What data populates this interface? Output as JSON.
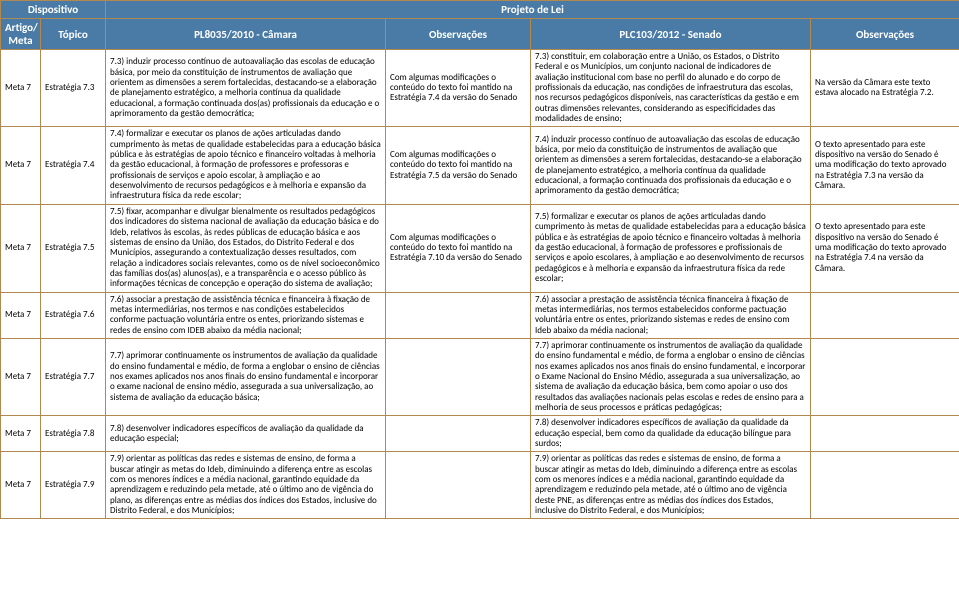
{
  "headers": {
    "group_dispositivo": "Dispositivo",
    "group_projeto": "Projeto de Lei",
    "artigo": "Artigo/ Meta",
    "topico": "Tópico",
    "pl1": "PL8035/2010 - Câmara",
    "obs1": "Observações",
    "pl2": "PLC103/2012 - Senado",
    "obs2": "Observações"
  },
  "rows": [
    {
      "artigo": "Meta 7",
      "topico": "Estratégia 7.3",
      "pl1": "7.3) induzir processo contínuo de autoavaliação das escolas de educação básica, por meio da constituição de instrumentos de avaliação que orientem as dimensões a serem fortalecidas, destacando-se a elaboração de planejamento estratégico, a melhoria contínua da qualidade educacional, a formação continuada dos(as) profissionais da educação e o aprimoramento da gestão democrática;",
      "obs1": "Com algumas modificações o conteúdo do texto foi mantido na Estratégia 7.4 da versão do Senado",
      "pl2": "7.3) constituir, em colaboração entre a União, os Estados, o Distrito Federal e os Municípios, um conjunto nacional de indicadores de avaliação institucional com base no perfil do alunado e do corpo de profissionais da educação, nas condições de infraestrutura das escolas, nos recursos pedagógicos disponíveis, nas características da gestão e em outras dimensões relevantes, considerando as especificidades das modalidades de ensino;",
      "obs2": "Na versão da Câmara este texto estava alocado na Estratégia 7.2."
    },
    {
      "artigo": "Meta 7",
      "topico": "Estratégia 7.4",
      "pl1": "7.4) formalizar e executar os planos de ações articuladas dando cumprimento às metas de qualidade estabelecidas para a educação básica pública e às estratégias de apoio técnico e financeiro voltadas à melhoria da gestão educacional, à formação de professores e professoras e profissionais de serviços e apoio escolar, à ampliação e ao desenvolvimento de recursos pedagógicos e à melhoria e expansão da infraestrutura física da rede escolar;",
      "obs1": "Com algumas modificações o conteúdo do texto foi mantido na Estratégia 7.5 da versão do Senado",
      "pl2": "7.4) induzir processo contínuo de autoavaliação das escolas de educação básica, por meio da constituição de instrumentos de avaliação que orientem as dimensões a serem fortalecidas, destacando-se a elaboração de planejamento estratégico, a melhoria contínua da qualidade educacional, a formação continuada dos profissionais da educação e o aprimoramento da gestão democrática;",
      "obs2": "O texto apresentado para este dispositivo na versão do Senado é uma modificação do texto aprovado na Estratégia 7.3 na versão da Câmara."
    },
    {
      "artigo": "Meta 7",
      "topico": "Estratégia 7.5",
      "pl1": "7.5) fixar, acompanhar e divulgar bienalmente os resultados pedagógicos dos indicadores do sistema nacional de avaliação da educação básica e do Ideb, relativos às escolas, às redes públicas de educação básica e aos sistemas de ensino da União, dos Estados, do Distrito Federal e dos Municípios, assegurando a contextualização desses resultados, com relação a indicadores sociais relevantes, como os de nível socioeconômico das famílias dos(as) alunos(as), e a transparência e o acesso público às informações técnicas de concepção e operação do sistema de avaliação;",
      "obs1": "Com algumas modificações o conteúdo do texto foi mantido na Estratégia 7.10 da versão do Senado",
      "pl2": "7.5) formalizar e executar os planos de ações articuladas dando cumprimento às metas de qualidade estabelecidas para a educação básica pública e às estratégias de apoio técnico e financeiro voltadas à melhoria da gestão educacional, à formação de professores e profissionais de serviços e apoio escolares, à ampliação e ao desenvolvimento de recursos pedagógicos e à melhoria e expansão da infraestrutura física da rede escolar;",
      "obs2": "O texto apresentado para este dispositivo na versão do Senado é uma modificação do texto aprovado na Estratégia 7.4 na versão da Câmara."
    },
    {
      "artigo": "Meta 7",
      "topico": "Estratégia 7.6",
      "pl1": "7.6) associar a prestação de assistência técnica e financeira à fixação de metas intermediárias, nos termos e nas condições estabelecidos conforme pactuação voluntária entre os entes, priorizando sistemas e redes de ensino com IDEB abaixo da média nacional;",
      "obs1": "",
      "pl2": "7.6) associar a prestação de assistência técnica financeira à fixação de metas intermediárias, nos termos estabelecidos conforme pactuação voluntária entre os entes, priorizando sistemas e redes de ensino com Ideb abaixo da média nacional;",
      "obs2": ""
    },
    {
      "artigo": "Meta 7",
      "topico": "Estratégia 7.7",
      "pl1": "7.7) aprimorar continuamente os instrumentos de avaliação da qualidade do ensino fundamental e médio, de forma a englobar o ensino de ciências nos exames aplicados nos anos finais do ensino fundamental e incorporar o exame nacional de ensino médio, assegurada a sua universalização, ao sistema de avaliação da educação básica;",
      "obs1": "",
      "pl2": "7.7) aprimorar continuamente os instrumentos de avaliação da qualidade do ensino fundamental e médio, de forma a englobar o ensino de ciências nos exames aplicados nos anos finais do ensino fundamental, e incorporar o Exame Nacional do Ensino Médio, assegurada a sua universalização, ao sistema de avaliação da educação básica, bem como apoiar o uso dos resultados das avaliações nacionais pelas escolas e redes de ensino para a melhoria de seus processos e práticas pedagógicas;",
      "obs2": ""
    },
    {
      "artigo": "Meta 7",
      "topico": "Estratégia 7.8",
      "pl1": "7.8) desenvolver indicadores específicos de avaliação da qualidade da educação especial;",
      "obs1": "",
      "pl2": "7.8) desenvolver indicadores específicos de avaliação da qualidade da educação especial, bem como da qualidade da educação bilíngue para surdos;",
      "obs2": ""
    },
    {
      "artigo": "Meta 7",
      "topico": "Estratégia 7.9",
      "pl1": "7.9) orientar as políticas das redes e sistemas de ensino, de forma a buscar atingir as metas do Ideb, diminuindo a diferença entre as escolas com os menores índices e a média nacional, garantindo equidade da aprendizagem e reduzindo pela metade, até o último ano de vigência do plano, as diferenças entre as médias dos índices dos Estados, inclusive do Distrito Federal, e dos Municípios;",
      "obs1": "",
      "pl2": "7.9) orientar as políticas das redes e sistemas de ensino, de forma a buscar atingir as metas do Ideb, diminuindo a diferença entre as escolas com os menores índices e a média nacional, garantindo equidade da aprendizagem e reduzindo pela metade, até o último ano de vigência deste PNE, as diferenças entre as médias dos índices dos Estados, inclusive do Distrito Federal, e dos Municípios;",
      "obs2": ""
    }
  ]
}
